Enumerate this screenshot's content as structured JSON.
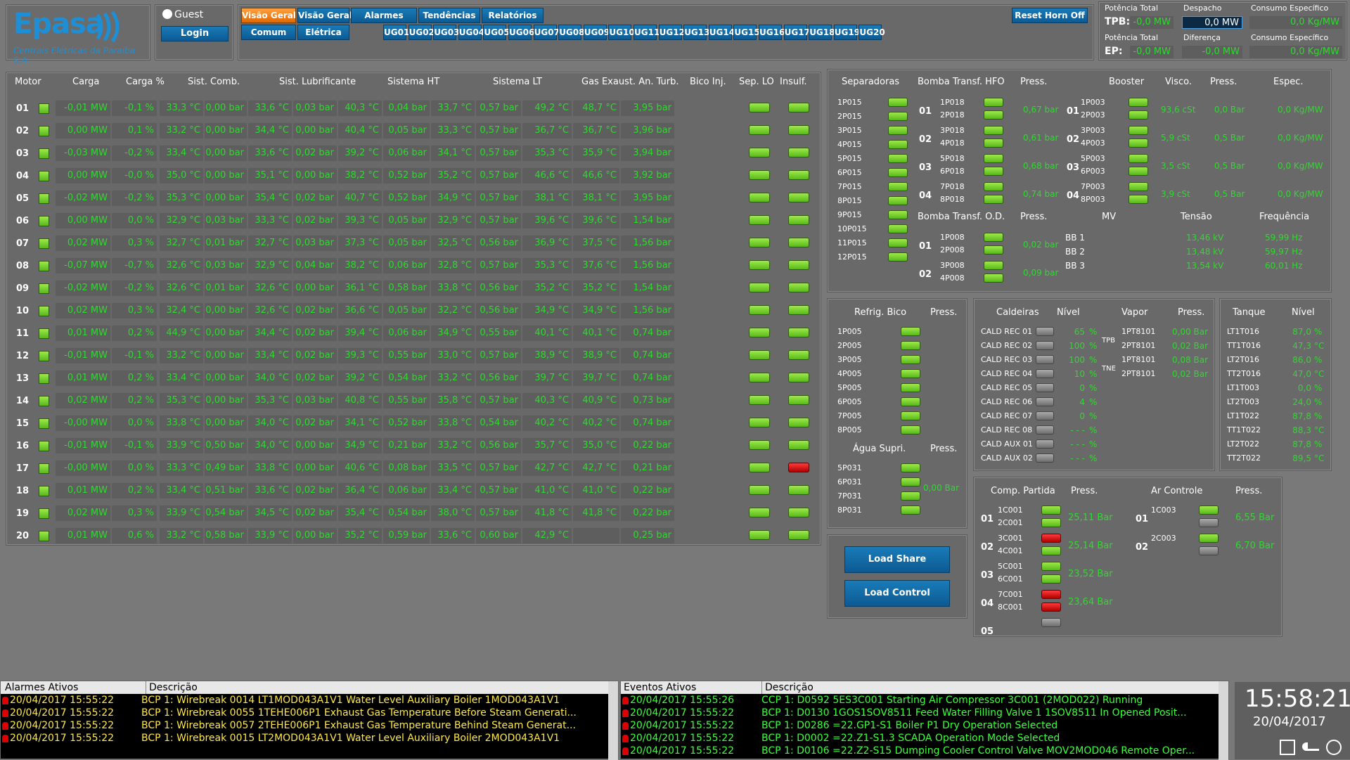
{
  "logo": {
    "name": "Epasa",
    "subtitle": "Centrais Elétricas da Paraíba S.A."
  },
  "user": {
    "name": "Guest",
    "login": "Login"
  },
  "nav": {
    "row1": [
      "Visão Geral TP",
      "Visão Geral TN",
      "Alarmes",
      "Tendências",
      "Relatórios"
    ],
    "row2": [
      "Comum",
      "Elétrica"
    ],
    "ugs": [
      "UG01",
      "UG02",
      "UG03",
      "UG04",
      "UG05",
      "UG06",
      "UG07",
      "UG08",
      "UG09",
      "UG10",
      "UG11",
      "UG12",
      "UG13",
      "UG14",
      "UG15",
      "UG16",
      "UG17",
      "UG18",
      "UG19",
      "UG20"
    ],
    "reset": "Reset Horn Off"
  },
  "summary": {
    "h1": "Potência Total",
    "h2": "Despacho",
    "h3": "Consumo Específico",
    "tpb": "TPB:",
    "tpb_pot": "-0,0 MW",
    "despacho": "0,0  MW",
    "tpb_cons": "0,0  Kg/MW",
    "h4": "Potência Total",
    "h5": "Diferença",
    "h6": "Consumo Específico",
    "ep": "EP:",
    "ep_pot": "-0,0 MW",
    "diff": "-0,0 MW",
    "ep_cons": "0,0  Kg/MW"
  },
  "motors": {
    "headers": [
      "Motor",
      "Carga",
      "Carga %",
      "Sist. Comb.",
      "Sist. Lubrificante",
      "Sistema HT",
      "Sistema LT",
      "Gas Exaust. An. Turb.",
      "Bico Inj.",
      "Sep. LO",
      "Insulf."
    ],
    "rows": [
      {
        "id": "01",
        "c": "-0,01 MW",
        "p": "-0,1  %",
        "sc1": "33,3  °C",
        "sc2": "0,00 bar",
        "sl1": "33,6  °C",
        "sl2": "0,03 bar",
        "ht1": "40,3  °C",
        "ht2": "0,04 bar",
        "lt1": "33,7  °C",
        "lt2": "0,57 bar",
        "g1": "49,2  °C",
        "g2": "48,7  °C",
        "b": "3,95 bar",
        "ins": "g"
      },
      {
        "id": "02",
        "c": "0,00 MW",
        "p": "0,1  %",
        "sc1": "33,2  °C",
        "sc2": "0,00 bar",
        "sl1": "34,4  °C",
        "sl2": "0,00 bar",
        "ht1": "40,4  °C",
        "ht2": "0,05 bar",
        "lt1": "33,3  °C",
        "lt2": "0,57 bar",
        "g1": "36,7  °C",
        "g2": "36,7  °C",
        "b": "3,96 bar",
        "ins": "g"
      },
      {
        "id": "03",
        "c": "-0,03 MW",
        "p": "-0,2  %",
        "sc1": "33,4  °C",
        "sc2": "0,00 bar",
        "sl1": "33,6  °C",
        "sl2": "0,02 bar",
        "ht1": "39,2  °C",
        "ht2": "0,06 bar",
        "lt1": "34,1  °C",
        "lt2": "0,57 bar",
        "g1": "35,3  °C",
        "g2": "35,9  °C",
        "b": "3,94 bar",
        "ins": "g"
      },
      {
        "id": "04",
        "c": "0,00 MW",
        "p": "-0,0  %",
        "sc1": "35,0  °C",
        "sc2": "0,00 bar",
        "sl1": "35,1  °C",
        "sl2": "0,00 bar",
        "ht1": "38,2  °C",
        "ht2": "0,52 bar",
        "lt1": "35,2  °C",
        "lt2": "0,57 bar",
        "g1": "46,6  °C",
        "g2": "46,6  °C",
        "b": "3,92 bar",
        "ins": "g"
      },
      {
        "id": "05",
        "c": "-0,02 MW",
        "p": "-0,2  %",
        "sc1": "35,3  °C",
        "sc2": "0,00 bar",
        "sl1": "35,4  °C",
        "sl2": "0,02 bar",
        "ht1": "40,7  °C",
        "ht2": "0,52 bar",
        "lt1": "34,9  °C",
        "lt2": "0,57 bar",
        "g1": "38,1  °C",
        "g2": "38,1  °C",
        "b": "3,95 bar",
        "ins": "g"
      },
      {
        "id": "06",
        "c": "0,00 MW",
        "p": "0,0  %",
        "sc1": "32,9  °C",
        "sc2": "0,03 bar",
        "sl1": "33,3  °C",
        "sl2": "0,02 bar",
        "ht1": "39,3  °C",
        "ht2": "0,05 bar",
        "lt1": "32,9  °C",
        "lt2": "0,57 bar",
        "g1": "39,6  °C",
        "g2": "39,6  °C",
        "b": "1,54 bar",
        "ins": "g"
      },
      {
        "id": "07",
        "c": "0,02 MW",
        "p": "0,3  %",
        "sc1": "32,7  °C",
        "sc2": "0,01 bar",
        "sl1": "32,7  °C",
        "sl2": "0,03 bar",
        "ht1": "37,3  °C",
        "ht2": "0,05 bar",
        "lt1": "32,5  °C",
        "lt2": "0,56 bar",
        "g1": "36,9  °C",
        "g2": "37,5  °C",
        "b": "1,56 bar",
        "ins": "g"
      },
      {
        "id": "08",
        "c": "-0,07 MW",
        "p": "-0,7  %",
        "sc1": "32,6  °C",
        "sc2": "0,03 bar",
        "sl1": "32,9  °C",
        "sl2": "0,04 bar",
        "ht1": "38,2  °C",
        "ht2": "0,06 bar",
        "lt1": "32,8  °C",
        "lt2": "0,57 bar",
        "g1": "35,3  °C",
        "g2": "37,6  °C",
        "b": "1,56 bar",
        "ins": "g"
      },
      {
        "id": "09",
        "c": "-0,02 MW",
        "p": "-0,2  %",
        "sc1": "32,6  °C",
        "sc2": "0,01 bar",
        "sl1": "32,6  °C",
        "sl2": "0,00 bar",
        "ht1": "36,1  °C",
        "ht2": "0,58 bar",
        "lt1": "33,8  °C",
        "lt2": "0,56 bar",
        "g1": "35,2  °C",
        "g2": "35,2  °C",
        "b": "1,54 bar",
        "ins": "g"
      },
      {
        "id": "10",
        "c": "0,02 MW",
        "p": "0,3  %",
        "sc1": "32,4  °C",
        "sc2": "0,00 bar",
        "sl1": "32,6  °C",
        "sl2": "0,02 bar",
        "ht1": "36,6  °C",
        "ht2": "0,05 bar",
        "lt1": "32,2  °C",
        "lt2": "0,56 bar",
        "g1": "34,9  °C",
        "g2": "34,9  °C",
        "b": "1,56 bar",
        "ins": "g"
      },
      {
        "id": "11",
        "c": "0,01 MW",
        "p": "0,2  %",
        "sc1": "44,9  °C",
        "sc2": "0,00 bar",
        "sl1": "34,4  °C",
        "sl2": "0,02 bar",
        "ht1": "39,4  °C",
        "ht2": "0,06 bar",
        "lt1": "34,9  °C",
        "lt2": "0,55 bar",
        "g1": "40,1  °C",
        "g2": "40,1  °C",
        "b": "0,74 bar",
        "ins": "g"
      },
      {
        "id": "12",
        "c": "-0,01 MW",
        "p": "-0,1  %",
        "sc1": "33,2  °C",
        "sc2": "0,00 bar",
        "sl1": "33,4  °C",
        "sl2": "0,02 bar",
        "ht1": "39,3  °C",
        "ht2": "0,55 bar",
        "lt1": "33,0  °C",
        "lt2": "0,57 bar",
        "g1": "38,9  °C",
        "g2": "38,9  °C",
        "b": "0,74 bar",
        "ins": "g"
      },
      {
        "id": "13",
        "c": "0,01 MW",
        "p": "0,2  %",
        "sc1": "33,4  °C",
        "sc2": "0,00 bar",
        "sl1": "34,0  °C",
        "sl2": "0,02 bar",
        "ht1": "39,2  °C",
        "ht2": "0,54 bar",
        "lt1": "33,2  °C",
        "lt2": "0,56 bar",
        "g1": "39,7  °C",
        "g2": "39,7  °C",
        "b": "0,74 bar",
        "ins": "g"
      },
      {
        "id": "14",
        "c": "0,02 MW",
        "p": "0,2  %",
        "sc1": "35,3  °C",
        "sc2": "0,00 bar",
        "sl1": "35,3  °C",
        "sl2": "0,03 bar",
        "ht1": "40,8  °C",
        "ht2": "0,55 bar",
        "lt1": "35,8  °C",
        "lt2": "0,57 bar",
        "g1": "40,3  °C",
        "g2": "40,9  °C",
        "b": "0,73 bar",
        "ins": "g"
      },
      {
        "id": "15",
        "c": "-0,00 MW",
        "p": "0,0  %",
        "sc1": "33,8  °C",
        "sc2": "0,00 bar",
        "sl1": "34,0  °C",
        "sl2": "0,02 bar",
        "ht1": "34,1  °C",
        "ht2": "0,52 bar",
        "lt1": "33,8  °C",
        "lt2": "0,54 bar",
        "g1": "40,2  °C",
        "g2": "40,2  °C",
        "b": "0,74 bar",
        "ins": "g"
      },
      {
        "id": "16",
        "c": "-0,01 MW",
        "p": "-0,1  %",
        "sc1": "33,9  °C",
        "sc2": "0,50 bar",
        "sl1": "34,0  °C",
        "sl2": "0,00 bar",
        "ht1": "34,9  °C",
        "ht2": "0,21 bar",
        "lt1": "33,2  °C",
        "lt2": "0,56 bar",
        "g1": "35,7  °C",
        "g2": "35,0  °C",
        "b": "0,22 bar",
        "ins": "g"
      },
      {
        "id": "17",
        "c": "-0,00 MW",
        "p": "0,0  %",
        "sc1": "33,3  °C",
        "sc2": "0,49 bar",
        "sl1": "33,8  °C",
        "sl2": "0,00 bar",
        "ht1": "40,6  °C",
        "ht2": "0,08 bar",
        "lt1": "33,5  °C",
        "lt2": "0,57 bar",
        "g1": "42,7  °C",
        "g2": "42,7  °C",
        "b": "0,21 bar",
        "ins": "r"
      },
      {
        "id": "18",
        "c": "0,01 MW",
        "p": "0,2  %",
        "sc1": "33,4  °C",
        "sc2": "0,51 bar",
        "sl1": "33,6  °C",
        "sl2": "0,02 bar",
        "ht1": "36,4  °C",
        "ht2": "0,06 bar",
        "lt1": "33,4  °C",
        "lt2": "0,57 bar",
        "g1": "41,0  °C",
        "g2": "41,0  °C",
        "b": "0,22 bar",
        "ins": "g"
      },
      {
        "id": "19",
        "c": "0,02 MW",
        "p": "0,3  %",
        "sc1": "33,9  °C",
        "sc2": "0,54 bar",
        "sl1": "34,5  °C",
        "sl2": "0,02 bar",
        "ht1": "35,4  °C",
        "ht2": "0,54 bar",
        "lt1": "38,0  °C",
        "lt2": "0,57 bar",
        "g1": "41,8  °C",
        "g2": "41,8  °C",
        "b": "0,22 bar",
        "ins": "g"
      },
      {
        "id": "20",
        "c": "0,01 MW",
        "p": "0,6  %",
        "sc1": "33,2  °C",
        "sc2": "0,58 bar",
        "sl1": "33,9  °C",
        "sl2": "0,00 bar",
        "ht1": "35,2  °C",
        "ht2": "0,59 bar",
        "lt1": "33,6  °C",
        "lt2": "0,60 bar",
        "g1": "42,9  °C",
        "g2": "",
        "b": "0,25 bar",
        "ins": "g"
      }
    ]
  },
  "separadoras": {
    "title": "Separadoras",
    "items": [
      "1P015",
      "2P015",
      "3P015",
      "4P015",
      "5P015",
      "6P015",
      "7P015",
      "8P015",
      "9P015",
      "10P015",
      "11P015",
      "12P015"
    ]
  },
  "hfo": {
    "title": "Bomba Transf. HFO",
    "press": "Press.",
    "rows": [
      {
        "n": "01",
        "a": "1P018",
        "b": "2P018",
        "v": "0,67 bar"
      },
      {
        "n": "02",
        "a": "3P018",
        "b": "4P018",
        "v": "0,61 bar"
      },
      {
        "n": "03",
        "a": "5P018",
        "b": "6P018",
        "v": "0,68 bar"
      },
      {
        "n": "04",
        "a": "7P018",
        "b": "8P018",
        "v": "0,74 bar"
      }
    ]
  },
  "booster": {
    "title": "Booster",
    "visco": "Visco.",
    "press": "Press.",
    "espec": "Espec.",
    "rows": [
      {
        "n": "01",
        "a": "1P003",
        "b": "2P003",
        "vi": "93,6 cSt",
        "p": "0,0 Bar",
        "e": "0,0  Kg/MW"
      },
      {
        "n": "02",
        "a": "3P003",
        "b": "4P003",
        "vi": "5,9 cSt",
        "p": "0,5 Bar",
        "e": "0,0  Kg/MW"
      },
      {
        "n": "03",
        "a": "5P003",
        "b": "6P003",
        "vi": "3,5 cSt",
        "p": "0,5 Bar",
        "e": "0,0  Kg/MW"
      },
      {
        "n": "04",
        "a": "7P003",
        "b": "8P003",
        "vi": "3,9 cSt",
        "p": "0,5 Bar",
        "e": "0,0  Kg/MW"
      }
    ]
  },
  "od": {
    "title": "Bomba Transf. O.D.",
    "press": "Press.",
    "rows": [
      {
        "n": "01",
        "a": "1P008",
        "b": "2P008",
        "v": "0,02 bar"
      },
      {
        "n": "02",
        "a": "3P008",
        "b": "4P008",
        "v": "0,09 bar"
      }
    ]
  },
  "mv": {
    "title": "MV",
    "tensao": "Tensão",
    "freq": "Frequência",
    "rows": [
      {
        "n": "BB 1",
        "t": "13,46  kV",
        "f": "59,99  Hz"
      },
      {
        "n": "BB 2",
        "t": "13,48  kV",
        "f": "59,97  Hz"
      },
      {
        "n": "BB 3",
        "t": "13,54  kV",
        "f": "60,01  Hz"
      }
    ]
  },
  "refrig": {
    "title": "Refrig. Bico",
    "press": "Press.",
    "items": [
      "1P005",
      "2P005",
      "3P005",
      "4P005",
      "5P005",
      "6P005",
      "7P005",
      "8P005"
    ]
  },
  "agua": {
    "title": "Água Supri.",
    "press": "Press.",
    "items": [
      "5P031",
      "6P031",
      "7P031",
      "8P031"
    ],
    "value": "0,00 Bar"
  },
  "caldeiras": {
    "title": "Caldeiras",
    "nivel": "Nível",
    "rows": [
      {
        "n": "CALD REC 01",
        "v": "65",
        "u": "%"
      },
      {
        "n": "CALD REC 02",
        "v": "100",
        "u": "%"
      },
      {
        "n": "CALD REC 03",
        "v": "100",
        "u": "%"
      },
      {
        "n": "CALD REC 04",
        "v": "10",
        "u": "%"
      },
      {
        "n": "CALD REC 05",
        "v": "0",
        "u": "%"
      },
      {
        "n": "CALD REC 06",
        "v": "4",
        "u": "%"
      },
      {
        "n": "CALD REC 07",
        "v": "0",
        "u": "%"
      },
      {
        "n": "CALD REC 08",
        "v": "- - -",
        "u": "%"
      },
      {
        "n": "CALD AUX 01",
        "v": "- - -",
        "u": "%"
      },
      {
        "n": "CALD AUX 02",
        "v": "- - -",
        "u": "%"
      }
    ]
  },
  "vapor": {
    "title": "Vapor",
    "press": "Press.",
    "tpb": "TPB",
    "tne": "TNE",
    "rows": [
      {
        "n": "1PT8101",
        "v": "0,00 Bar"
      },
      {
        "n": "2PT8101",
        "v": "0,02 Bar"
      },
      {
        "n": "1PT8101",
        "v": "0,08 Bar"
      },
      {
        "n": "2PT8101",
        "v": "0,02 Bar"
      }
    ]
  },
  "tanque": {
    "title": "Tanque",
    "nivel": "Nível",
    "rows": [
      {
        "n": "LT1T016",
        "v": "87,0",
        "u": "%"
      },
      {
        "n": "TT1T016",
        "v": "47,3",
        "u": "°C"
      },
      {
        "n": "LT2T016",
        "v": "86,0",
        "u": "%"
      },
      {
        "n": "TT2T016",
        "v": "47,0",
        "u": "°C"
      },
      {
        "n": "LT1T003",
        "v": "0,0",
        "u": "%"
      },
      {
        "n": "LT2T003",
        "v": "24,0",
        "u": "%"
      },
      {
        "n": "LT1T022",
        "v": "87,8",
        "u": "%"
      },
      {
        "n": "TT1T022",
        "v": "88,3",
        "u": "°C"
      },
      {
        "n": "LT2T022",
        "v": "87,8",
        "u": "%"
      },
      {
        "n": "TT2T022",
        "v": "89,5",
        "u": "°C"
      }
    ]
  },
  "comp": {
    "title": "Comp. Partida",
    "press": "Press.",
    "rows": [
      {
        "n": "01",
        "a": "1C001",
        "b": "2C001",
        "v": "25,11 Bar",
        "la": "g",
        "lb": "g"
      },
      {
        "n": "02",
        "a": "3C001",
        "b": "4C001",
        "v": "25,14 Bar",
        "la": "r",
        "lb": "g"
      },
      {
        "n": "03",
        "a": "5C001",
        "b": "6C001",
        "v": "23,52 Bar",
        "la": "g",
        "lb": "g"
      },
      {
        "n": "04",
        "a": "7C001",
        "b": "8C001",
        "v": "23,64 Bar",
        "la": "r",
        "lb": "r"
      },
      {
        "n": "05",
        "a": "",
        "b": "",
        "v": "",
        "la": "x",
        "lb": "x"
      }
    ]
  },
  "ar": {
    "title": "Ar Controle",
    "press": "Press.",
    "rows": [
      {
        "n": "01",
        "a": "1C003",
        "v": "6,55 Bar"
      },
      {
        "n": "02",
        "a": "2C003",
        "v": "6,70 Bar"
      }
    ]
  },
  "loadshare": "Load Share",
  "loadcontrol": "Load Control",
  "alarms": {
    "h1": "Alarmes Ativos",
    "h2": "Descrição",
    "rows": [
      {
        "t": "20/04/2017 15:55:22",
        "d": "BCP 1: Wirebreak 0014 LT1MOD043A1V1 Water Level Auxiliary Boiler 1MOD043A1V1"
      },
      {
        "t": "20/04/2017 15:55:22",
        "d": "BCP 1: Wirebreak 0055 1TEHE006P1 Exhaust Gas Temperature Before Steam Generati..."
      },
      {
        "t": "20/04/2017 15:55:22",
        "d": "BCP 1: Wirebreak 0057 2TEHE006P1 Exhaust Gas Temperature Behind Steam Generat..."
      },
      {
        "t": "20/04/2017 15:55:22",
        "d": "BCP 1: Wirebreak 0015 LT2MOD043A1V1 Water Level Auxiliary Boiler 2MOD043A1V1"
      }
    ]
  },
  "events": {
    "h1": "Eventos Ativos",
    "h2": "Descrição",
    "rows": [
      {
        "t": "20/04/2017 15:55:26",
        "d": "CCP 1: D0592 5ES3C001 Starting Air Compressor 3C001 (2MOD022) Running"
      },
      {
        "t": "20/04/2017 15:55:22",
        "d": "BCP 1: D0130 1GOS1SOV8511 Feed Water Filling Valve 1 1SOV8511 In Opened Posit..."
      },
      {
        "t": "20/04/2017 15:55:22",
        "d": "BCP 1: D0286 =22.GP1-S1 Boiler P1 Dry Operation Selected"
      },
      {
        "t": "20/04/2017 15:55:22",
        "d": "BCP 1: D0002 =22.Z1-S1.3 SCADA Operation Mode Selected"
      },
      {
        "t": "20/04/2017 15:55:22",
        "d": "BCP 1: D0106 =22.Z2-S15 Dumping Cooler Control Valve MOV2MOD046 Remote Oper..."
      }
    ]
  },
  "clock": {
    "time": "15:58:21",
    "date": "20/04/2017"
  }
}
